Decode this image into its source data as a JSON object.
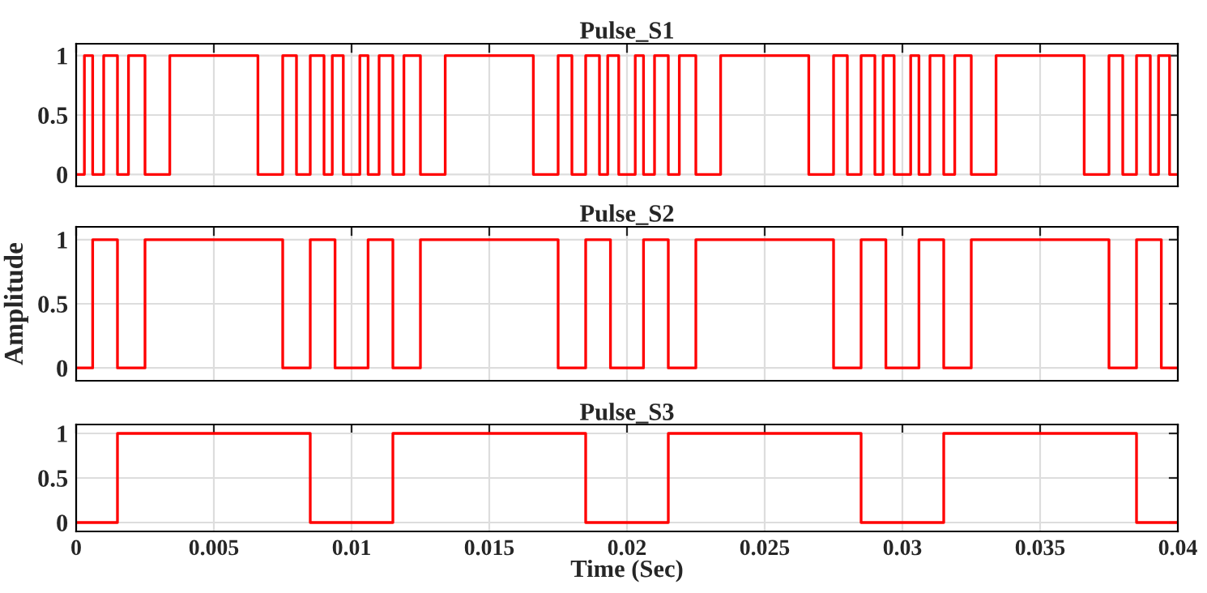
{
  "chart_data": [
    {
      "type": "step",
      "title": "Pulse_S1",
      "xlim": [
        0,
        0.04
      ],
      "ylim": [
        -0.1,
        1.1
      ],
      "yticks": [
        0,
        0.5,
        1
      ],
      "grid": true,
      "tick_labels": "y",
      "series": [
        {
          "color": "#ff0000",
          "x": [
            0,
            0.0003,
            0.0006,
            0.001,
            0.0015,
            0.0019,
            0.0025,
            0.0034,
            0.0066,
            0.0075,
            0.008,
            0.0085,
            0.009,
            0.0093,
            0.0097,
            0.0103,
            0.0106,
            0.011,
            0.0115,
            0.0119,
            0.0125,
            0.0134,
            0.0166,
            0.0175,
            0.018,
            0.0185,
            0.019,
            0.0193,
            0.0197,
            0.0203,
            0.0206,
            0.021,
            0.0215,
            0.0219,
            0.0225,
            0.0234,
            0.0266,
            0.0275,
            0.028,
            0.0285,
            0.029,
            0.0293,
            0.0297,
            0.0303,
            0.0306,
            0.031,
            0.0315,
            0.0319,
            0.0325,
            0.0334,
            0.0366,
            0.0375,
            0.038,
            0.0385,
            0.039,
            0.0393,
            0.0397,
            0.04
          ],
          "values": [
            0,
            1,
            0,
            1,
            0,
            1,
            0,
            1,
            0,
            1,
            0,
            1,
            0,
            1,
            0,
            1,
            0,
            1,
            0,
            1,
            0,
            1,
            0,
            1,
            0,
            1,
            0,
            1,
            0,
            1,
            0,
            1,
            0,
            1,
            0,
            1,
            0,
            1,
            0,
            1,
            0,
            1,
            0,
            1,
            0,
            1,
            0,
            1,
            0,
            1,
            0,
            1,
            0,
            1,
            0,
            1,
            0,
            0
          ]
        }
      ]
    },
    {
      "type": "step",
      "title": "Pulse_S2",
      "ylabel": "Amplitude",
      "xlim": [
        0,
        0.04
      ],
      "ylim": [
        -0.1,
        1.1
      ],
      "yticks": [
        0,
        0.5,
        1
      ],
      "grid": true,
      "tick_labels": "y",
      "series": [
        {
          "color": "#ff0000",
          "x": [
            0,
            0.0006,
            0.0015,
            0.0025,
            0.0075,
            0.0085,
            0.0094,
            0.0106,
            0.0115,
            0.0125,
            0.0175,
            0.0185,
            0.0194,
            0.0206,
            0.0215,
            0.0225,
            0.0275,
            0.0285,
            0.0294,
            0.0306,
            0.0315,
            0.0325,
            0.0375,
            0.0385,
            0.0394,
            0.04
          ],
          "values": [
            0,
            1,
            0,
            1,
            0,
            1,
            0,
            1,
            0,
            1,
            0,
            1,
            0,
            1,
            0,
            1,
            0,
            1,
            0,
            1,
            0,
            1,
            0,
            1,
            0,
            0
          ]
        }
      ]
    },
    {
      "type": "step",
      "title": "Pulse_S3",
      "xlabel": "Time (Sec)",
      "xlim": [
        0,
        0.04
      ],
      "ylim": [
        -0.1,
        1.1
      ],
      "yticks": [
        0,
        0.5,
        1
      ],
      "xticks": [
        0,
        0.005,
        0.01,
        0.015,
        0.02,
        0.025,
        0.03,
        0.035,
        0.04
      ],
      "grid": true,
      "series": [
        {
          "color": "#ff0000",
          "x": [
            0,
            0.0015,
            0.0085,
            0.0115,
            0.0185,
            0.0215,
            0.0285,
            0.0315,
            0.0385,
            0.04
          ],
          "values": [
            0,
            1,
            0,
            1,
            0,
            1,
            0,
            1,
            0,
            0
          ]
        }
      ]
    }
  ]
}
